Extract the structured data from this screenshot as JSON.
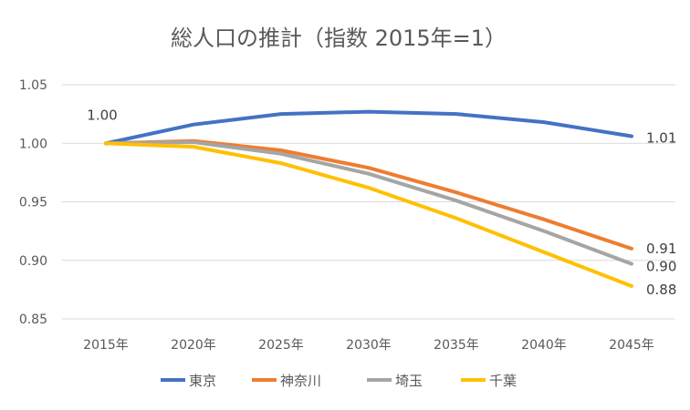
{
  "chart_data": {
    "type": "line",
    "title": "総人口の推計（指数 2015年=1）",
    "xlabel": "",
    "ylabel": "",
    "categories": [
      "2015年",
      "2020年",
      "2025年",
      "2030年",
      "2035年",
      "2040年",
      "2045年"
    ],
    "ylim": [
      0.85,
      1.05
    ],
    "yticks": [
      "0.85",
      "0.90",
      "0.95",
      "1.00",
      "1.05"
    ],
    "grid": true,
    "legend_position": "bottom",
    "series": [
      {
        "name": "東京",
        "color": "#4472C4",
        "values": [
          1.0,
          1.016,
          1.025,
          1.027,
          1.025,
          1.018,
          1.006
        ]
      },
      {
        "name": "神奈川",
        "color": "#ED7D31",
        "values": [
          1.0,
          1.002,
          0.994,
          0.979,
          0.958,
          0.935,
          0.91
        ]
      },
      {
        "name": "埼玉",
        "color": "#A5A5A5",
        "values": [
          1.0,
          1.001,
          0.991,
          0.974,
          0.951,
          0.925,
          0.897
        ]
      },
      {
        "name": "千葉",
        "color": "#FFC000",
        "values": [
          1.0,
          0.997,
          0.983,
          0.962,
          0.936,
          0.907,
          0.878
        ]
      }
    ],
    "data_labels": [
      {
        "text": "1.00",
        "series": "東京",
        "index": 0
      },
      {
        "text": "1.01",
        "series": "東京",
        "index": 6
      },
      {
        "text": "0.91",
        "series": "神奈川",
        "index": 6
      },
      {
        "text": "0.90",
        "series": "埼玉",
        "index": 6
      },
      {
        "text": "0.88",
        "series": "千葉",
        "index": 6
      }
    ]
  }
}
